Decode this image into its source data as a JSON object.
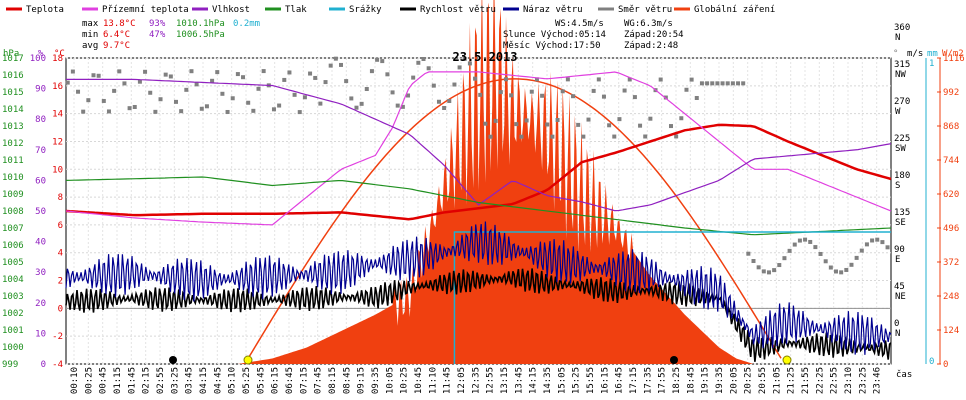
{
  "legend": [
    {
      "label": "Teplota",
      "color": "#e00000"
    },
    {
      "label": "Přízemní teplota",
      "color": "#e040e0"
    },
    {
      "label": "Vlhkost",
      "color": "#9020c0"
    },
    {
      "label": "Tlak",
      "color": "#209020"
    },
    {
      "label": "Srážky",
      "color": "#20b0d0"
    },
    {
      "label": "Rychlost větru",
      "color": "#000000"
    },
    {
      "label": "Náraz větru",
      "color": "#000090"
    },
    {
      "label": "Směr větru",
      "color": "#808080"
    },
    {
      "label": "Globální záření",
      "color": "#f04010"
    }
  ],
  "stats": {
    "max": {
      "label": "max",
      "temp": "13.8°C",
      "hum": "93%",
      "press": "1010.1hPa",
      "rain": "0.2mm"
    },
    "min": {
      "label": "min",
      "temp": "6.4°C",
      "hum": "47%",
      "press": "1006.5hPa"
    },
    "avg": {
      "label": "avg",
      "temp": "9.7°C"
    }
  },
  "info": {
    "ws": "WS:4.5m/s",
    "wg": "WG:6.3m/s",
    "sun": "Slunce Východ:05:14",
    "sun_set": "Západ:20:54",
    "moon": "Měsíc Východ:17:50",
    "moon_set": "Západ:2:48"
  },
  "axis_units": {
    "hpa": "hPa",
    "pct": "%",
    "degc": "°C",
    "ms": "m/s",
    "mm": "mm",
    "wdir": "°",
    "wm2": "W/m2",
    "time": "čas"
  },
  "chart_data": {
    "type": "line",
    "title": "23.5.2013",
    "x_ticks": [
      "00:10",
      "00:25",
      "00:45",
      "01:15",
      "01:45",
      "02:15",
      "02:55",
      "03:25",
      "03:45",
      "04:15",
      "04:45",
      "05:10",
      "05:25",
      "05:45",
      "06:15",
      "06:45",
      "07:15",
      "07:45",
      "08:15",
      "08:45",
      "09:15",
      "09:35",
      "10:05",
      "10:25",
      "10:45",
      "11:10",
      "11:45",
      "12:05",
      "12:35",
      "12:55",
      "13:15",
      "13:45",
      "14:15",
      "14:35",
      "15:05",
      "15:25",
      "15:55",
      "16:15",
      "16:45",
      "17:15",
      "17:35",
      "17:55",
      "18:25",
      "18:45",
      "19:15",
      "19:35",
      "20:05",
      "20:25",
      "20:55",
      "21:05",
      "21:25",
      "21:55",
      "22:25",
      "22:55",
      "23:10",
      "23:25",
      "23:46"
    ],
    "left_axes": {
      "pressure_hpa": {
        "min": 999,
        "max": 1017,
        "ticks": [
          999,
          1000,
          1001,
          1002,
          1003,
          1004,
          1005,
          1006,
          1007,
          1008,
          1009,
          1010,
          1011,
          1012,
          1013,
          1014,
          1015,
          1016,
          1017
        ]
      },
      "humidity_pct": {
        "min": 0,
        "max": 100,
        "ticks": [
          0,
          10,
          20,
          30,
          40,
          50,
          60,
          70,
          80,
          90,
          100
        ]
      },
      "temperature_c": {
        "min": -4,
        "max": 18,
        "ticks": [
          -4,
          -2,
          0,
          2,
          4,
          6,
          8,
          10,
          12,
          14,
          16,
          18
        ]
      }
    },
    "right_axes": {
      "wind_direction": {
        "ticks": [
          {
            "deg": "0",
            "lbl": "N"
          },
          {
            "deg": "45",
            "lbl": "NE"
          },
          {
            "deg": "90",
            "lbl": "E"
          },
          {
            "deg": "135",
            "lbl": "SE"
          },
          {
            "deg": "180",
            "lbl": "S"
          },
          {
            "deg": "225",
            "lbl": "SW"
          },
          {
            "deg": "270",
            "lbl": "W"
          },
          {
            "deg": "315",
            "lbl": "NW"
          },
          {
            "deg": "360",
            "lbl": "N"
          }
        ]
      },
      "rain_mm": {
        "ticks": [
          "0",
          "1"
        ]
      },
      "radiation_wm2": {
        "min": 0,
        "max": 1116,
        "ticks": [
          0,
          124,
          248,
          372,
          496,
          620,
          744,
          868,
          992,
          1116
        ]
      }
    },
    "series": [
      {
        "name": "Teplota",
        "unit": "°C",
        "color": "#e00000",
        "x": [
          0,
          2,
          4,
          6,
          8,
          10,
          11,
          12,
          13,
          14,
          15,
          16,
          17,
          18,
          19,
          20,
          21,
          22,
          23,
          24
        ],
        "y": [
          7.0,
          6.7,
          6.8,
          6.8,
          6.9,
          6.4,
          6.9,
          7.2,
          7.5,
          8.5,
          10.5,
          11.2,
          12.0,
          12.8,
          13.2,
          13.1,
          12.0,
          11.0,
          10.0,
          9.3
        ]
      },
      {
        "name": "Přízemní teplota",
        "unit": "°C",
        "color": "#e040e0",
        "x": [
          0,
          2,
          4,
          6,
          7,
          8,
          9,
          9.5,
          10,
          10.5,
          12,
          14,
          16,
          17,
          18,
          19,
          20,
          21,
          22,
          23,
          24
        ],
        "y": [
          7.0,
          6.5,
          6.2,
          6.0,
          8.0,
          10.0,
          11.0,
          13.0,
          16.0,
          17.0,
          17.0,
          16.5,
          17.0,
          16.0,
          14.0,
          12.0,
          10.0,
          10.0,
          9.0,
          8.0,
          7.0
        ]
      },
      {
        "name": "Vlhkost",
        "unit": "%",
        "color": "#9020c0",
        "x": [
          0,
          2,
          4,
          6,
          8,
          9,
          10,
          11,
          12,
          13,
          14,
          15,
          16,
          17,
          18,
          19,
          20,
          21,
          22,
          23,
          24
        ],
        "y": [
          93,
          93,
          92,
          91,
          85,
          80,
          75,
          65,
          52,
          60,
          55,
          53,
          50,
          52,
          56,
          60,
          67,
          68,
          69,
          70,
          72
        ]
      },
      {
        "name": "Tlak",
        "unit": "hPa",
        "color": "#209020",
        "x": [
          0,
          2,
          4,
          6,
          8,
          10,
          12,
          14,
          16,
          18,
          20,
          22,
          24
        ],
        "y": [
          1009.8,
          1009.9,
          1010.0,
          1009.5,
          1009.8,
          1009.3,
          1008.5,
          1008.0,
          1007.5,
          1007.0,
          1006.6,
          1006.8,
          1007.0
        ]
      },
      {
        "name": "Srážky",
        "unit": "mm",
        "color": "#20b0d0",
        "x": [
          0,
          11.3,
          24
        ],
        "y": [
          0,
          0.2,
          0.2
        ]
      },
      {
        "name": "Rychlost větru",
        "unit": "m/s",
        "color": "#000000",
        "x": [
          0,
          2,
          4,
          6,
          8,
          9,
          10,
          11,
          12,
          13,
          14,
          15,
          16,
          17,
          18,
          19,
          20,
          21,
          22,
          23,
          24
        ],
        "y": [
          0.5,
          0.7,
          0.6,
          0.6,
          0.8,
          0.8,
          1.5,
          1.8,
          2.0,
          2.2,
          1.8,
          1.6,
          1.2,
          1.3,
          1.0,
          0.7,
          -3.0,
          -2.5,
          -2.6,
          -2.8,
          -3.0
        ]
      },
      {
        "name": "Náraz větru",
        "unit": "m/s",
        "color": "#000090",
        "x": [
          0,
          2,
          4,
          6,
          8,
          9,
          10,
          11,
          12,
          13,
          14,
          15,
          16,
          17,
          18,
          19,
          20,
          21,
          22,
          23,
          24
        ],
        "y": [
          2.2,
          2.5,
          2.0,
          2.3,
          2.6,
          3.2,
          3.5,
          4.0,
          4.8,
          4.2,
          3.6,
          3.0,
          2.8,
          2.5,
          1.8,
          1.2,
          -2.0,
          -1.0,
          -1.5,
          -1.8,
          -2.0
        ]
      },
      {
        "name": "Globální záření",
        "unit": "W/m2",
        "color": "#f04010",
        "x": [
          0,
          5,
          6,
          7,
          8,
          9,
          10,
          11,
          12,
          12.5,
          13,
          14,
          15,
          16,
          17,
          18,
          19,
          19.5,
          20,
          24
        ],
        "y": [
          0,
          0,
          20,
          60,
          120,
          180,
          250,
          650,
          1000,
          1080,
          940,
          860,
          640,
          500,
          320,
          180,
          60,
          20,
          0,
          0
        ]
      }
    ],
    "grid": true
  }
}
